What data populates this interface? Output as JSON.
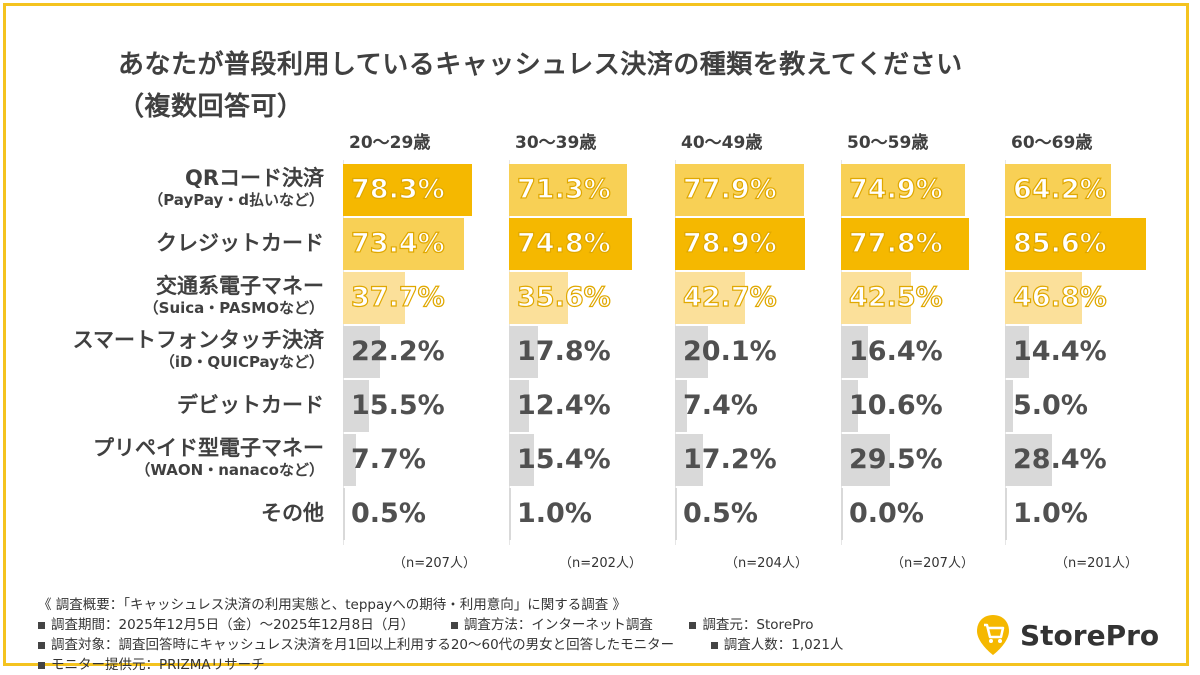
{
  "title_line1": "あなたが普段利用しているキャッシュレス決済の種類を教えてください",
  "title_line2": "（複数回答可）",
  "chart_data": {
    "type": "bar",
    "columns": [
      {
        "label": "20〜29歳",
        "n": "（n=207人）"
      },
      {
        "label": "30〜39歳",
        "n": "（n=202人）"
      },
      {
        "label": "40〜49歳",
        "n": "（n=204人）"
      },
      {
        "label": "50〜59歳",
        "n": "（n=207人）"
      },
      {
        "label": "60〜69歳",
        "n": "（n=201人）"
      }
    ],
    "rows": [
      {
        "label": "QRコード決済",
        "sub": "（PayPay・d払いなど）",
        "values": [
          78.3,
          71.3,
          77.9,
          74.9,
          64.2
        ],
        "display": [
          "78.3%",
          "71.3%",
          "77.9%",
          "74.9%",
          "64.2%"
        ]
      },
      {
        "label": "クレジットカード",
        "sub": "",
        "values": [
          73.4,
          74.8,
          78.9,
          77.8,
          85.6
        ],
        "display": [
          "73.4%",
          "74.8%",
          "78.9%",
          "77.8%",
          "85.6%"
        ]
      },
      {
        "label": "交通系電子マネー",
        "sub": "（Suica・PASMOなど）",
        "values": [
          37.7,
          35.6,
          42.7,
          42.5,
          46.8
        ],
        "display": [
          "37.7%",
          "35.6%",
          "42.7%",
          "42.5%",
          "46.8%"
        ]
      },
      {
        "label": "スマートフォンタッチ決済",
        "sub": "（iD・QUICPayなど）",
        "values": [
          22.2,
          17.8,
          20.1,
          16.4,
          14.4
        ],
        "display": [
          "22.2%",
          "17.8%",
          "20.1%",
          "16.4%",
          "14.4%"
        ]
      },
      {
        "label": "デビットカード",
        "sub": "",
        "values": [
          15.5,
          12.4,
          7.4,
          10.6,
          5.0
        ],
        "display": [
          "15.5%",
          "12.4%",
          "7.4%",
          "10.6%",
          "5.0%"
        ]
      },
      {
        "label": "プリペイド型電子マネー",
        "sub": "（WAON・nanacoなど）",
        "values": [
          7.7,
          15.4,
          17.2,
          29.5,
          28.4
        ],
        "display": [
          "7.7%",
          "15.4%",
          "17.2%",
          "29.5%",
          "28.4%"
        ]
      },
      {
        "label": "その他",
        "sub": "",
        "values": [
          0.5,
          1.0,
          0.5,
          0.0,
          1.0
        ],
        "display": [
          "0.5%",
          "1.0%",
          "0.5%",
          "0.0%",
          "1.0%"
        ]
      }
    ],
    "colors": {
      "top": "#f5b800",
      "second": "#f8d055",
      "third": "#fbe09a",
      "gray": "#d9d9d9"
    }
  },
  "footer": {
    "line1": "《 調査概要：「キャッシュレス決済の利用実態と、teppayへの期待・利用意向」に関する調査 》",
    "period": "調査期間：2025年12月5日（金）〜2025年12月8日（月）",
    "method": "調査方法：インターネット調査",
    "source": "調査元：StorePro",
    "target": "調査対象：調査回答時にキャッシュレス決済を月1回以上利用する20〜60代の男女と回答したモニター",
    "count": "調査人数：1,021人",
    "provider": "モニター提供元：PRIZMAリサーチ"
  },
  "logo": {
    "text": "StorePro",
    "icon": "shopping-cart-icon",
    "color": "#f5b800"
  }
}
